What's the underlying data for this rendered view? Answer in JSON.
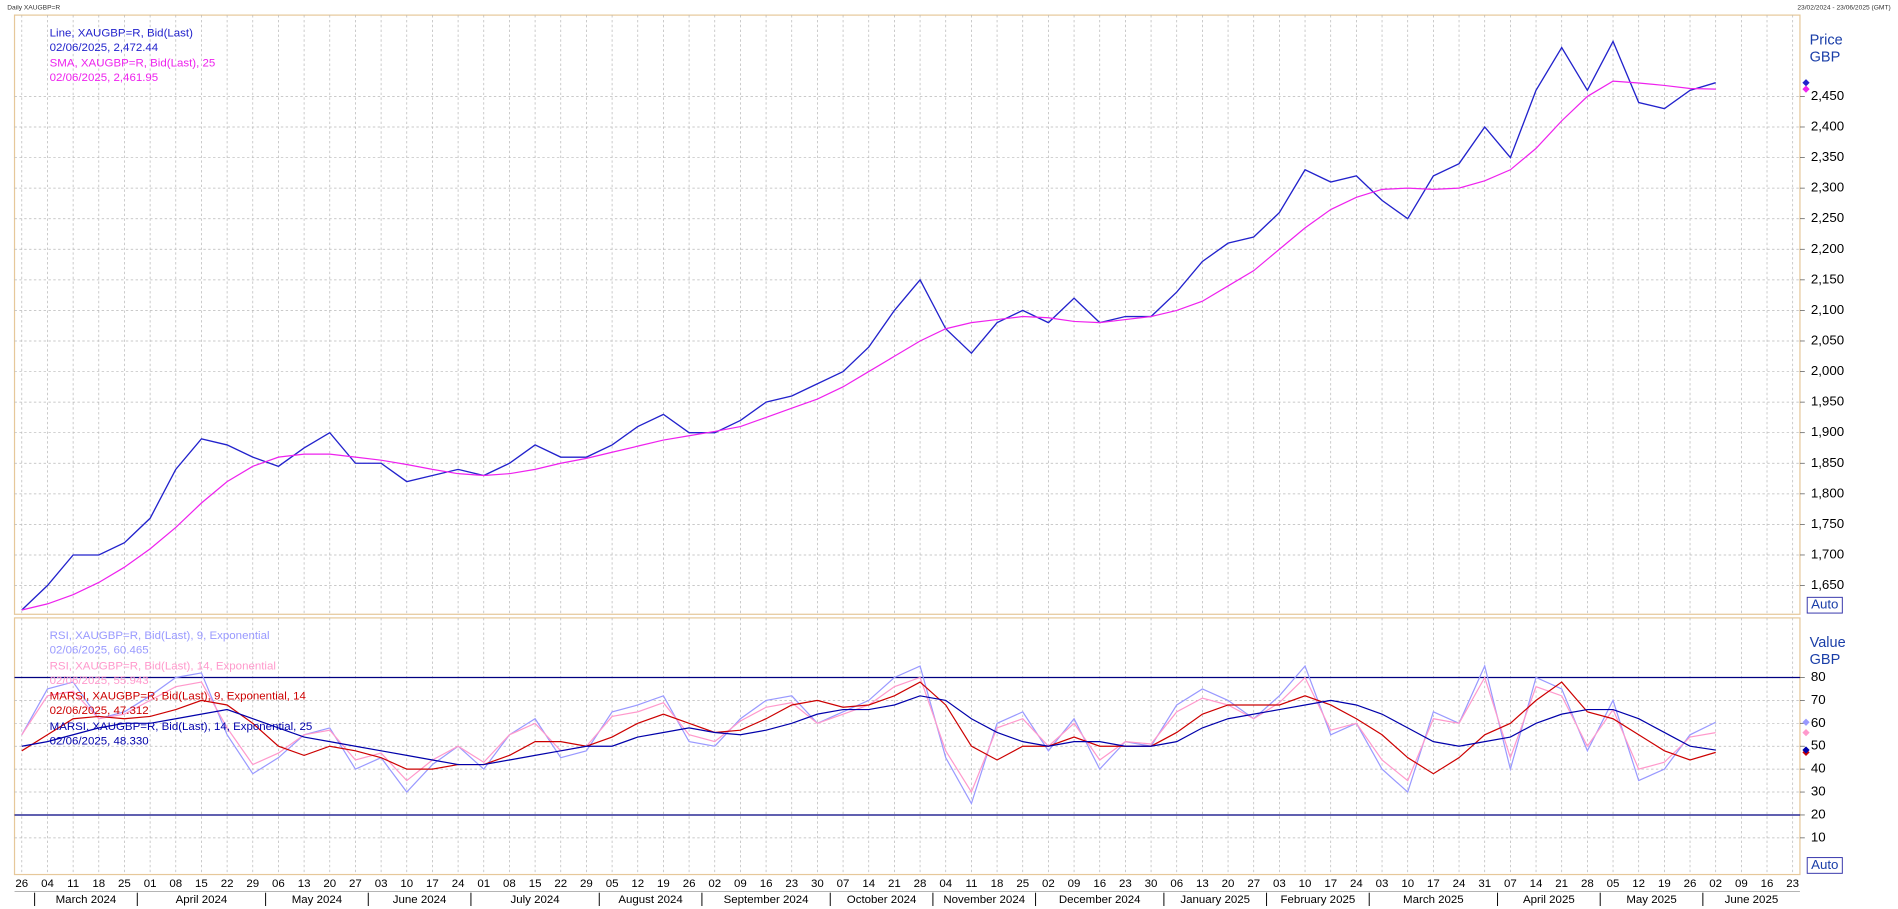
{
  "header": {
    "title": "Daily XAUGBP=R",
    "range": "23/02/2024 - 23/06/2025 (GMT)"
  },
  "chart_data": [
    {
      "type": "line",
      "categories": [
        "26",
        "04",
        "11",
        "18",
        "25",
        "01",
        "08",
        "15",
        "22",
        "29",
        "06",
        "13",
        "20",
        "27",
        "03",
        "10",
        "17",
        "24",
        "01",
        "08",
        "15",
        "22",
        "29",
        "05",
        "12",
        "19",
        "26",
        "02",
        "09",
        "16",
        "23",
        "30",
        "07",
        "14",
        "21",
        "28",
        "04",
        "11",
        "18",
        "25",
        "02",
        "09",
        "16",
        "23",
        "30",
        "06",
        "13",
        "20",
        "27",
        "03",
        "10",
        "17",
        "24",
        "03",
        "10",
        "17",
        "24",
        "31",
        "07",
        "14",
        "21",
        "28",
        "05",
        "12",
        "19",
        "26",
        "02",
        "09",
        "16",
        "23"
      ],
      "month_labels": [
        null,
        "March 2024",
        "April 2024",
        "May 2024",
        "June 2024",
        "July 2024",
        "August 2024",
        "September 2024",
        "October 2024",
        "November 2024",
        "December 2024",
        "January 2025",
        "February 2025",
        "March 2025",
        "April 2025",
        "May 2025",
        "June 2025"
      ],
      "y_label": [
        "Price",
        "GBP"
      ],
      "scale_button": "Auto",
      "ylim": [
        1603,
        2583
      ],
      "yticks": [
        {
          "value": 1650,
          "label": "1,650"
        },
        {
          "value": 1700,
          "label": "1,700"
        },
        {
          "value": 1750,
          "label": "1,750"
        },
        {
          "value": 1800,
          "label": "1,800"
        },
        {
          "value": 1850,
          "label": "1,850"
        },
        {
          "value": 1900,
          "label": "1,900"
        },
        {
          "value": 1950,
          "label": "1,950"
        },
        {
          "value": 2000,
          "label": "2,000"
        },
        {
          "value": 2050,
          "label": "2,050"
        },
        {
          "value": 2100,
          "label": "2,100"
        },
        {
          "value": 2150,
          "label": "2,150"
        },
        {
          "value": 2200,
          "label": "2,200"
        },
        {
          "value": 2250,
          "label": "2,250"
        },
        {
          "value": 2300,
          "label": "2,300"
        },
        {
          "value": 2350,
          "label": "2,350"
        },
        {
          "value": 2400,
          "label": "2,400"
        },
        {
          "value": 2450,
          "label": "2,450"
        }
      ],
      "grid": true,
      "series": [
        {
          "name": "Line, XAUGBP=R, Bid(Last)",
          "legend_value": "02/06/2025, 2,472.44",
          "color": "#2222cc",
          "values": [
            1610,
            1650,
            1700,
            1700,
            1720,
            1760,
            1840,
            1890,
            1880,
            1860,
            1845,
            1875,
            1900,
            1850,
            1850,
            1820,
            1830,
            1840,
            1830,
            1850,
            1880,
            1860,
            1860,
            1880,
            1910,
            1930,
            1900,
            1900,
            1920,
            1950,
            1960,
            1980,
            2000,
            2040,
            2100,
            2150,
            2070,
            2030,
            2080,
            2100,
            2080,
            2120,
            2080,
            2090,
            2090,
            2130,
            2180,
            2210,
            2220,
            2260,
            2330,
            2310,
            2320,
            2280,
            2250,
            2320,
            2340,
            2400,
            2350,
            2460,
            2530,
            2460,
            2540,
            2440,
            2430,
            2460,
            2472.44,
            null,
            null,
            null
          ]
        },
        {
          "name": "SMA, XAUGBP=R, Bid(Last),  25",
          "legend_value": "02/06/2025, 2,461.95",
          "color": "#ee22ee",
          "values": [
            1610,
            1620,
            1635,
            1655,
            1680,
            1710,
            1745,
            1785,
            1820,
            1845,
            1860,
            1865,
            1865,
            1860,
            1855,
            1848,
            1840,
            1833,
            1830,
            1833,
            1840,
            1850,
            1858,
            1868,
            1878,
            1888,
            1895,
            1902,
            1910,
            1925,
            1940,
            1955,
            1975,
            2000,
            2025,
            2050,
            2070,
            2080,
            2085,
            2090,
            2088,
            2082,
            2080,
            2085,
            2090,
            2100,
            2115,
            2140,
            2165,
            2200,
            2235,
            2265,
            2285,
            2298,
            2300,
            2298,
            2300,
            2312,
            2330,
            2365,
            2410,
            2450,
            2475,
            2472,
            2468,
            2463,
            2461.95,
            null,
            null,
            null
          ]
        }
      ]
    },
    {
      "type": "line",
      "y_label": [
        "Value",
        "GBP"
      ],
      "scale_button": "Auto",
      "ylim": [
        -6,
        106
      ],
      "yticks": [
        10,
        20,
        30,
        40,
        50,
        60,
        70,
        80
      ],
      "reference_lines": [
        80,
        20
      ],
      "reference_color": "#000080",
      "grid": true,
      "series": [
        {
          "name": "RSI, XAUGBP=R, Bid(Last),  9, Exponential",
          "legend_value": "02/06/2025, 60.465",
          "color": "#9999ff",
          "values": [
            55,
            75,
            78,
            62,
            65,
            72,
            80,
            82,
            55,
            38,
            45,
            55,
            58,
            40,
            45,
            30,
            42,
            50,
            40,
            55,
            62,
            45,
            48,
            65,
            68,
            72,
            52,
            50,
            62,
            70,
            72,
            60,
            65,
            70,
            80,
            85,
            45,
            25,
            60,
            65,
            48,
            62,
            40,
            52,
            50,
            68,
            75,
            70,
            62,
            72,
            85,
            55,
            60,
            40,
            30,
            65,
            60,
            85,
            40,
            80,
            75,
            48,
            70,
            35,
            40,
            55,
            60.465,
            null,
            null,
            null
          ]
        },
        {
          "name": "RSI, XAUGBP=R, Bid(Last),  14, Exponential",
          "legend_value": "02/06/2025, 55.943",
          "color": "#ff99cc",
          "values": [
            55,
            72,
            74,
            62,
            64,
            70,
            76,
            78,
            58,
            42,
            47,
            55,
            57,
            44,
            47,
            35,
            44,
            50,
            43,
            55,
            60,
            48,
            50,
            63,
            65,
            69,
            55,
            52,
            61,
            67,
            69,
            60,
            64,
            68,
            76,
            80,
            48,
            30,
            58,
            62,
            50,
            60,
            44,
            52,
            51,
            65,
            71,
            68,
            62,
            69,
            80,
            57,
            60,
            44,
            35,
            62,
            60,
            80,
            45,
            76,
            72,
            50,
            66,
            40,
            43,
            54,
            55.943,
            null,
            null,
            null
          ]
        },
        {
          "name": "MARSI, XAUGBP=R, Bid(Last),  9, Exponential, 14",
          "legend_value": "02/06/2025, 47.312",
          "color": "#cc0000",
          "values": [
            48,
            55,
            62,
            63,
            62,
            63,
            66,
            70,
            68,
            60,
            50,
            46,
            50,
            48,
            45,
            40,
            40,
            42,
            42,
            46,
            52,
            52,
            50,
            54,
            60,
            64,
            60,
            56,
            57,
            62,
            68,
            70,
            67,
            68,
            72,
            78,
            68,
            50,
            44,
            50,
            50,
            54,
            50,
            50,
            50,
            56,
            64,
            68,
            68,
            68,
            72,
            68,
            62,
            55,
            45,
            38,
            45,
            55,
            60,
            70,
            78,
            65,
            62,
            55,
            48,
            44,
            47.312,
            null,
            null,
            null
          ]
        },
        {
          "name": "MARSI, XAUGBP=R, Bid(Last),  14, Exponential, 25",
          "legend_value": "02/06/2025, 48.330",
          "color": "#0000aa",
          "values": [
            50,
            52,
            55,
            58,
            60,
            60,
            62,
            64,
            66,
            62,
            58,
            54,
            52,
            50,
            48,
            46,
            44,
            42,
            42,
            44,
            46,
            48,
            50,
            50,
            54,
            56,
            58,
            56,
            55,
            57,
            60,
            64,
            66,
            66,
            68,
            72,
            70,
            62,
            56,
            52,
            50,
            52,
            52,
            50,
            50,
            52,
            58,
            62,
            64,
            66,
            68,
            70,
            68,
            64,
            58,
            52,
            50,
            52,
            54,
            60,
            64,
            66,
            66,
            62,
            56,
            50,
            48.33,
            null,
            null,
            null
          ]
        }
      ]
    }
  ]
}
